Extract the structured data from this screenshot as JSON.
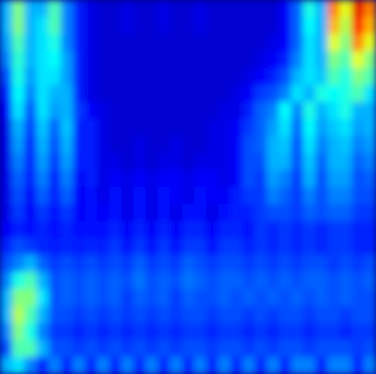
{
  "chart_data": {
    "type": "heatmap",
    "tick_labels": false,
    "color_range": [
      0,
      1
    ],
    "cells": [
      [
        0.3,
        0.5,
        0.3,
        0.3,
        0.45,
        0.25,
        0.15,
        0.1,
        0.08,
        0.08,
        0.1,
        0.08,
        0.08,
        0.1,
        0.08,
        0.08,
        0.1,
        0.08,
        0.08,
        0.08,
        0.08,
        0.08,
        0.08,
        0.12,
        0.22,
        0.4,
        0.3,
        0.75,
        0.6,
        0.9,
        0.75
      ],
      [
        0.3,
        0.5,
        0.3,
        0.35,
        0.45,
        0.25,
        0.15,
        0.1,
        0.08,
        0.08,
        0.1,
        0.08,
        0.08,
        0.1,
        0.08,
        0.08,
        0.1,
        0.08,
        0.08,
        0.08,
        0.08,
        0.08,
        0.08,
        0.12,
        0.22,
        0.38,
        0.3,
        0.7,
        0.55,
        0.85,
        0.7
      ],
      [
        0.28,
        0.45,
        0.3,
        0.35,
        0.4,
        0.25,
        0.15,
        0.1,
        0.08,
        0.08,
        0.08,
        0.08,
        0.08,
        0.08,
        0.08,
        0.08,
        0.08,
        0.08,
        0.08,
        0.08,
        0.08,
        0.08,
        0.1,
        0.12,
        0.22,
        0.35,
        0.3,
        0.6,
        0.5,
        0.75,
        0.6
      ],
      [
        0.25,
        0.42,
        0.3,
        0.35,
        0.38,
        0.28,
        0.15,
        0.1,
        0.08,
        0.08,
        0.08,
        0.08,
        0.08,
        0.08,
        0.08,
        0.08,
        0.08,
        0.08,
        0.08,
        0.08,
        0.08,
        0.1,
        0.12,
        0.15,
        0.25,
        0.35,
        0.3,
        0.5,
        0.45,
        0.6,
        0.5
      ],
      [
        0.2,
        0.4,
        0.28,
        0.35,
        0.35,
        0.28,
        0.15,
        0.1,
        0.08,
        0.08,
        0.08,
        0.08,
        0.08,
        0.08,
        0.08,
        0.08,
        0.08,
        0.08,
        0.08,
        0.08,
        0.1,
        0.12,
        0.15,
        0.2,
        0.3,
        0.35,
        0.32,
        0.45,
        0.4,
        0.5,
        0.45
      ],
      [
        0.15,
        0.38,
        0.25,
        0.35,
        0.3,
        0.3,
        0.15,
        0.1,
        0.08,
        0.08,
        0.08,
        0.08,
        0.08,
        0.08,
        0.08,
        0.08,
        0.08,
        0.08,
        0.08,
        0.1,
        0.12,
        0.18,
        0.2,
        0.25,
        0.35,
        0.3,
        0.4,
        0.38,
        0.4,
        0.45,
        0.35
      ],
      [
        0.12,
        0.35,
        0.2,
        0.35,
        0.28,
        0.3,
        0.18,
        0.12,
        0.1,
        0.08,
        0.08,
        0.08,
        0.08,
        0.08,
        0.08,
        0.08,
        0.08,
        0.08,
        0.1,
        0.1,
        0.15,
        0.22,
        0.25,
        0.38,
        0.25,
        0.4,
        0.3,
        0.35,
        0.4,
        0.3,
        0.3
      ],
      [
        0.1,
        0.3,
        0.18,
        0.32,
        0.22,
        0.32,
        0.15,
        0.15,
        0.1,
        0.08,
        0.08,
        0.08,
        0.08,
        0.08,
        0.08,
        0.08,
        0.08,
        0.1,
        0.1,
        0.12,
        0.18,
        0.22,
        0.28,
        0.35,
        0.22,
        0.38,
        0.28,
        0.32,
        0.35,
        0.28,
        0.3
      ],
      [
        0.1,
        0.28,
        0.15,
        0.3,
        0.2,
        0.3,
        0.15,
        0.15,
        0.1,
        0.08,
        0.08,
        0.1,
        0.08,
        0.08,
        0.1,
        0.08,
        0.08,
        0.1,
        0.1,
        0.12,
        0.2,
        0.22,
        0.3,
        0.32,
        0.2,
        0.35,
        0.25,
        0.3,
        0.32,
        0.25,
        0.28
      ],
      [
        0.1,
        0.25,
        0.15,
        0.28,
        0.18,
        0.28,
        0.15,
        0.15,
        0.1,
        0.1,
        0.08,
        0.1,
        0.08,
        0.1,
        0.1,
        0.08,
        0.1,
        0.1,
        0.1,
        0.12,
        0.2,
        0.2,
        0.3,
        0.3,
        0.2,
        0.32,
        0.22,
        0.3,
        0.3,
        0.22,
        0.25
      ],
      [
        0.1,
        0.22,
        0.15,
        0.25,
        0.15,
        0.25,
        0.12,
        0.15,
        0.1,
        0.12,
        0.1,
        0.12,
        0.1,
        0.12,
        0.12,
        0.1,
        0.12,
        0.12,
        0.1,
        0.12,
        0.2,
        0.18,
        0.28,
        0.25,
        0.18,
        0.3,
        0.2,
        0.28,
        0.28,
        0.2,
        0.22
      ],
      [
        0.1,
        0.2,
        0.12,
        0.22,
        0.15,
        0.22,
        0.12,
        0.14,
        0.1,
        0.14,
        0.1,
        0.14,
        0.1,
        0.14,
        0.12,
        0.1,
        0.14,
        0.12,
        0.12,
        0.15,
        0.18,
        0.18,
        0.25,
        0.22,
        0.18,
        0.25,
        0.2,
        0.25,
        0.25,
        0.2,
        0.2
      ],
      [
        0.1,
        0.18,
        0.12,
        0.18,
        0.14,
        0.18,
        0.12,
        0.14,
        0.12,
        0.14,
        0.1,
        0.14,
        0.1,
        0.14,
        0.1,
        0.14,
        0.14,
        0.1,
        0.14,
        0.15,
        0.15,
        0.18,
        0.2,
        0.2,
        0.18,
        0.22,
        0.2,
        0.22,
        0.22,
        0.18,
        0.18
      ],
      [
        0.12,
        0.15,
        0.14,
        0.16,
        0.14,
        0.16,
        0.14,
        0.14,
        0.14,
        0.16,
        0.12,
        0.16,
        0.12,
        0.16,
        0.12,
        0.16,
        0.16,
        0.12,
        0.16,
        0.16,
        0.14,
        0.18,
        0.16,
        0.18,
        0.16,
        0.18,
        0.16,
        0.18,
        0.18,
        0.16,
        0.16
      ],
      [
        0.15,
        0.2,
        0.18,
        0.16,
        0.15,
        0.16,
        0.15,
        0.16,
        0.15,
        0.18,
        0.14,
        0.18,
        0.14,
        0.18,
        0.14,
        0.18,
        0.18,
        0.14,
        0.18,
        0.18,
        0.15,
        0.18,
        0.16,
        0.18,
        0.16,
        0.18,
        0.16,
        0.18,
        0.18,
        0.16,
        0.16
      ],
      [
        0.2,
        0.25,
        0.3,
        0.22,
        0.18,
        0.2,
        0.18,
        0.2,
        0.18,
        0.2,
        0.18,
        0.22,
        0.18,
        0.2,
        0.18,
        0.22,
        0.2,
        0.18,
        0.2,
        0.2,
        0.18,
        0.2,
        0.18,
        0.2,
        0.18,
        0.2,
        0.2,
        0.18,
        0.2,
        0.18,
        0.2
      ],
      [
        0.25,
        0.4,
        0.45,
        0.3,
        0.2,
        0.22,
        0.2,
        0.22,
        0.2,
        0.22,
        0.2,
        0.24,
        0.2,
        0.22,
        0.2,
        0.24,
        0.22,
        0.2,
        0.22,
        0.22,
        0.2,
        0.22,
        0.2,
        0.22,
        0.2,
        0.22,
        0.22,
        0.2,
        0.22,
        0.2,
        0.22
      ],
      [
        0.3,
        0.5,
        0.5,
        0.35,
        0.2,
        0.22,
        0.2,
        0.22,
        0.2,
        0.22,
        0.18,
        0.22,
        0.2,
        0.22,
        0.18,
        0.22,
        0.2,
        0.2,
        0.22,
        0.2,
        0.22,
        0.2,
        0.22,
        0.2,
        0.22,
        0.2,
        0.22,
        0.2,
        0.22,
        0.2,
        0.2
      ],
      [
        0.3,
        0.55,
        0.45,
        0.3,
        0.2,
        0.2,
        0.18,
        0.2,
        0.18,
        0.2,
        0.18,
        0.2,
        0.18,
        0.2,
        0.18,
        0.2,
        0.2,
        0.18,
        0.2,
        0.2,
        0.18,
        0.2,
        0.18,
        0.2,
        0.2,
        0.18,
        0.2,
        0.2,
        0.18,
        0.2,
        0.2
      ],
      [
        0.25,
        0.5,
        0.4,
        0.25,
        0.18,
        0.18,
        0.16,
        0.18,
        0.16,
        0.18,
        0.16,
        0.18,
        0.16,
        0.18,
        0.16,
        0.18,
        0.18,
        0.16,
        0.18,
        0.18,
        0.16,
        0.18,
        0.16,
        0.18,
        0.18,
        0.16,
        0.18,
        0.18,
        0.16,
        0.18,
        0.18
      ],
      [
        0.2,
        0.45,
        0.45,
        0.3,
        0.2,
        0.2,
        0.18,
        0.2,
        0.18,
        0.2,
        0.18,
        0.2,
        0.18,
        0.2,
        0.18,
        0.2,
        0.2,
        0.18,
        0.2,
        0.2,
        0.18,
        0.2,
        0.18,
        0.2,
        0.2,
        0.18,
        0.2,
        0.2,
        0.2,
        0.18,
        0.2
      ],
      [
        0.3,
        0.35,
        0.25,
        0.15,
        0.25,
        0.15,
        0.25,
        0.15,
        0.25,
        0.15,
        0.25,
        0.15,
        0.25,
        0.15,
        0.25,
        0.15,
        0.25,
        0.15,
        0.25,
        0.15,
        0.25,
        0.15,
        0.25,
        0.15,
        0.25,
        0.25,
        0.15,
        0.25,
        0.25,
        0.15,
        0.25
      ]
    ]
  }
}
